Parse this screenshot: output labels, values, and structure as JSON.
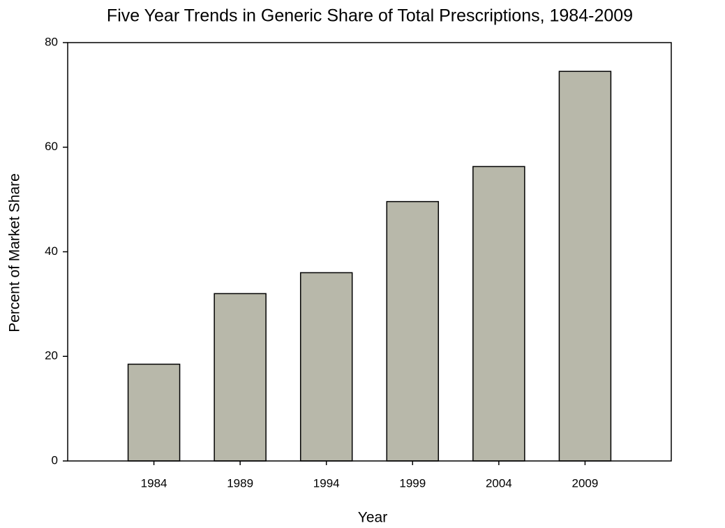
{
  "chart_data": {
    "type": "bar",
    "title": "Five Year Trends in Generic Share of Total Prescriptions, 1984-2009",
    "x_label": "Year",
    "y_label": "Percent of Market Share",
    "categories": [
      "1984",
      "1989",
      "1994",
      "1999",
      "2004",
      "2009"
    ],
    "values": [
      18.5,
      32,
      36,
      49.6,
      56.3,
      74.5
    ],
    "color": "#b8b8aa",
    "ylim": [
      0,
      80
    ],
    "yticks": [
      0,
      20,
      40,
      60,
      80
    ],
    "grid": false
  }
}
